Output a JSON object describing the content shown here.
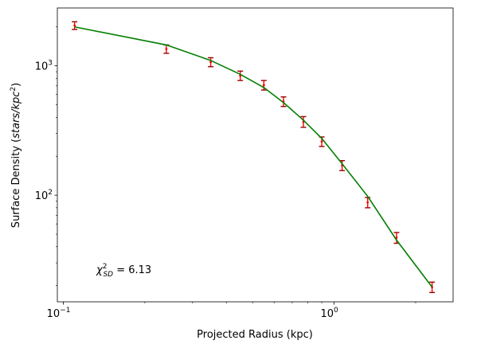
{
  "chart_data": {
    "type": "scatter",
    "xscale": "log",
    "yscale": "log",
    "xlim": [
      0.095,
      2.75
    ],
    "ylim": [
      15,
      2800
    ],
    "xlabel": "Projected Radius (kpc)",
    "ylabel": {
      "prefix": "Surface Density (",
      "unit_main": "stars/kpc",
      "unit_sup": "2",
      "suffix": ")"
    },
    "x_ticks": [
      {
        "value": 0.1,
        "base": "10",
        "exp": "−1"
      },
      {
        "value": 1,
        "base": "10",
        "exp": "0"
      }
    ],
    "y_ticks": [
      {
        "value": 100,
        "base": "10",
        "exp": "2"
      },
      {
        "value": 1000,
        "base": "10",
        "exp": "3"
      }
    ],
    "annotation": {
      "symbol": "χ",
      "sup": "2",
      "sub": "SD",
      "rest": " = 6.13"
    },
    "series": [
      {
        "kind": "errorbar",
        "color": "#ff0000",
        "cap_color": "#9a0000",
        "x": [
          0.11,
          0.24,
          0.35,
          0.45,
          0.55,
          0.65,
          0.77,
          0.9,
          1.07,
          1.33,
          1.7,
          2.3
        ],
        "y": [
          2050,
          1350,
          1070,
          840,
          710,
          530,
          370,
          260,
          170,
          88,
          47,
          19.5
        ],
        "yerr": [
          140,
          100,
          85,
          70,
          60,
          45,
          35,
          22,
          15,
          8,
          4.5,
          1.8
        ]
      },
      {
        "kind": "line",
        "color": "#007f00",
        "x": [
          0.11,
          0.24,
          0.35,
          0.45,
          0.55,
          0.65,
          0.77,
          0.9,
          1.07,
          1.33,
          1.7,
          2.3
        ],
        "y": [
          2000,
          1450,
          1100,
          860,
          680,
          520,
          380,
          275,
          175,
          98,
          45,
          19.5
        ]
      }
    ]
  }
}
